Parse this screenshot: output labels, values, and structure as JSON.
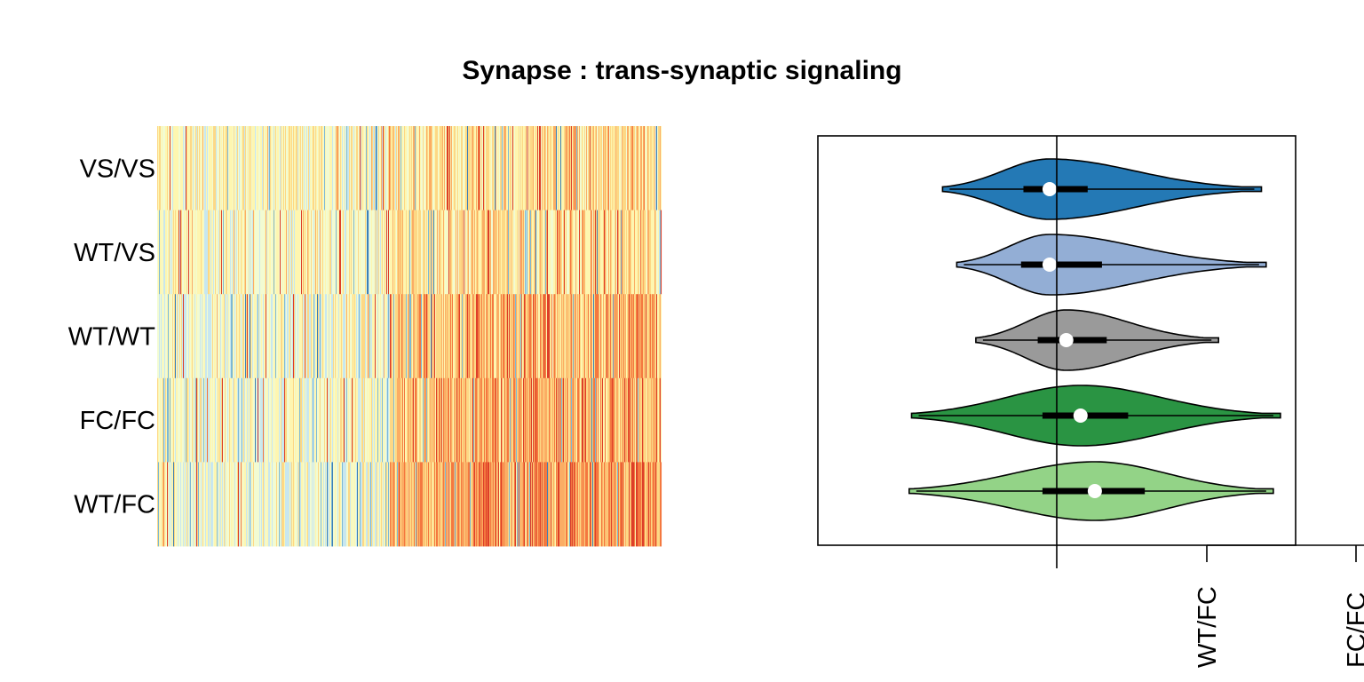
{
  "chart_data": [
    {
      "type": "heatmap",
      "title": "Synapse : trans-synaptic signaling",
      "rows": [
        "VS/VS",
        "WT/VS",
        "WT/WT",
        "FC/FC",
        "WT/FC"
      ],
      "palette": [
        "#3b7fb6",
        "#7cb8d5",
        "#c8e7ef",
        "#f2fbd2",
        "#fef6b0",
        "#fdd885",
        "#fbad64",
        "#f4783f",
        "#dd3f29"
      ],
      "palette_name": "RdYlBu (reversed)",
      "columns_visible": false
    },
    {
      "type": "violin",
      "orientation": "horizontal",
      "categories": [
        "VS/VS",
        "WT/VS",
        "WT/WT",
        "FC/FC",
        "WT/FC"
      ],
      "colors": [
        "#2479b5",
        "#93aed5",
        "#9a9a9a",
        "#2a9443",
        "#93d387"
      ],
      "reference_line": true,
      "x_tick_labels": [
        "WT/FC",
        "FC/FC"
      ],
      "series": [
        {
          "category": "VS/VS",
          "min": -0.48,
          "q1": -0.14,
          "median": -0.03,
          "q3": 0.13,
          "max": 0.86
        },
        {
          "category": "WT/VS",
          "min": -0.42,
          "q1": -0.15,
          "median": -0.03,
          "q3": 0.19,
          "max": 0.88
        },
        {
          "category": "WT/WT",
          "min": -0.34,
          "q1": -0.08,
          "median": 0.04,
          "q3": 0.21,
          "max": 0.68
        },
        {
          "category": "FC/FC",
          "min": -0.61,
          "q1": -0.06,
          "median": 0.1,
          "q3": 0.3,
          "max": 0.94
        },
        {
          "category": "WT/FC",
          "min": -0.62,
          "q1": -0.06,
          "median": 0.16,
          "q3": 0.37,
          "max": 0.91
        }
      ]
    }
  ]
}
